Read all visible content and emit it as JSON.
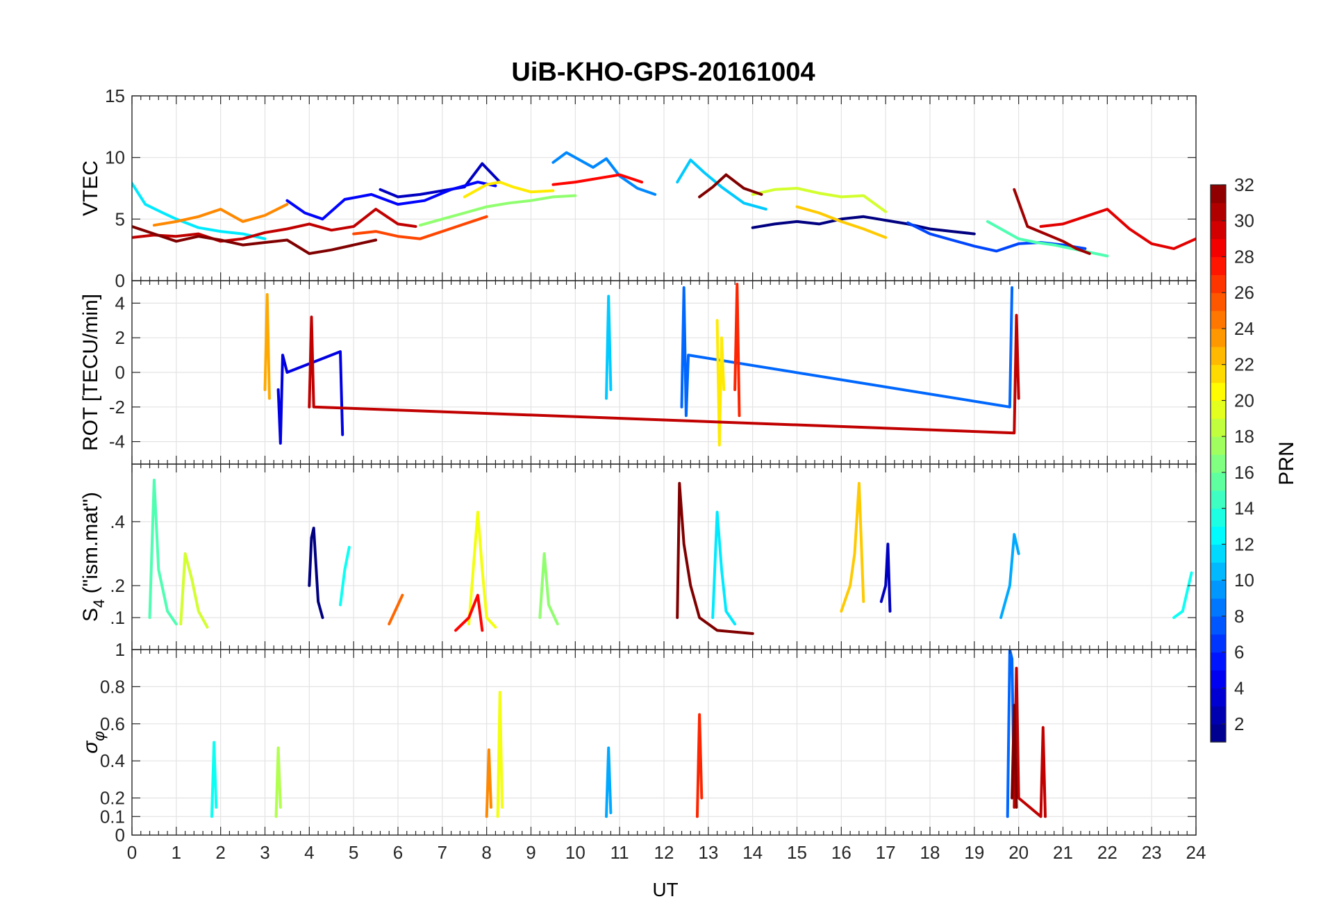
{
  "chart_data": {
    "type": "line",
    "title": "UiB-KHO-GPS-20161004",
    "xlabel": "UT",
    "xlim": [
      0,
      24
    ],
    "xticks": [
      0,
      1,
      2,
      3,
      4,
      5,
      6,
      7,
      8,
      9,
      10,
      11,
      12,
      13,
      14,
      15,
      16,
      17,
      18,
      19,
      20,
      21,
      22,
      23,
      24
    ],
    "grid": true,
    "colorbar": {
      "label": "PRN",
      "colormap": "jet",
      "range": [
        1,
        32
      ],
      "ticks": [
        2,
        4,
        6,
        8,
        10,
        12,
        14,
        16,
        18,
        20,
        22,
        24,
        26,
        28,
        30,
        32
      ]
    },
    "panels": [
      {
        "ylabel": "VTEC",
        "ylim": [
          0,
          15
        ],
        "yticks": [
          0,
          5,
          10,
          15
        ],
        "series": [
          {
            "prn": 1,
            "x": [
              14.0,
              14.5,
              15.0,
              15.5,
              16.0,
              16.5,
              17.0,
              17.5,
              18.0,
              18.5,
              19.0
            ],
            "y": [
              4.3,
              4.6,
              4.8,
              4.6,
              5.0,
              5.2,
              4.9,
              4.6,
              4.2,
              4.0,
              3.8
            ]
          },
          {
            "prn": 3,
            "x": [
              5.6,
              6.0,
              6.5,
              7.0,
              7.5,
              7.9,
              8.3
            ],
            "y": [
              7.4,
              6.8,
              7.0,
              7.3,
              7.6,
              9.5,
              8.0
            ]
          },
          {
            "prn": 5,
            "x": [
              3.5,
              3.9,
              4.3,
              4.8,
              5.4,
              6.0,
              6.6,
              7.2,
              7.8,
              8.2
            ],
            "y": [
              6.5,
              5.5,
              5.0,
              6.6,
              7.0,
              6.2,
              6.5,
              7.4,
              8.0,
              7.7
            ]
          },
          {
            "prn": 7,
            "x": [
              17.5,
              18.0,
              18.5,
              19.0,
              19.5,
              20.0,
              20.5,
              21.0,
              21.5
            ],
            "y": [
              4.7,
              3.8,
              3.3,
              2.8,
              2.4,
              3.0,
              3.1,
              2.9,
              2.6
            ]
          },
          {
            "prn": 9,
            "x": [
              9.5,
              9.8,
              10.1,
              10.4,
              10.7,
              11.0,
              11.4,
              11.8
            ],
            "y": [
              9.6,
              10.4,
              9.8,
              9.2,
              9.9,
              8.5,
              7.5,
              7.0
            ]
          },
          {
            "prn": 11,
            "x": [
              12.3,
              12.6,
              12.9,
              13.3,
              13.8,
              14.3
            ],
            "y": [
              8.0,
              9.8,
              8.8,
              7.6,
              6.3,
              5.8
            ]
          },
          {
            "prn": 12,
            "x": [
              0.0,
              0.3,
              0.7,
              1.0,
              1.5,
              2.0,
              2.5,
              3.0
            ],
            "y": [
              7.9,
              6.2,
              5.5,
              5.0,
              4.3,
              4.0,
              3.8,
              3.4
            ]
          },
          {
            "prn": 15,
            "x": [
              19.3,
              19.6,
              20.0,
              20.4,
              20.8,
              21.2,
              21.6,
              22.0
            ],
            "y": [
              4.8,
              4.2,
              3.4,
              3.1,
              2.9,
              2.6,
              2.3,
              2.0
            ]
          },
          {
            "prn": 17,
            "x": [
              6.5,
              7.0,
              7.5,
              8.0,
              8.5,
              9.0,
              9.5,
              10.0
            ],
            "y": [
              4.5,
              5.0,
              5.5,
              6.0,
              6.3,
              6.5,
              6.8,
              6.9
            ]
          },
          {
            "prn": 19,
            "x": [
              14.0,
              14.5,
              15.0,
              15.5,
              16.0,
              16.5,
              17.0
            ],
            "y": [
              7.0,
              7.4,
              7.5,
              7.1,
              6.8,
              6.9,
              5.6
            ]
          },
          {
            "prn": 21,
            "x": [
              7.5,
              8.0,
              8.3,
              8.6,
              9.0,
              9.5
            ],
            "y": [
              6.8,
              7.8,
              8.0,
              7.6,
              7.2,
              7.3
            ]
          },
          {
            "prn": 22,
            "x": [
              15.0,
              15.5,
              16.0,
              16.5,
              17.0
            ],
            "y": [
              6.0,
              5.5,
              4.8,
              4.2,
              3.5
            ]
          },
          {
            "prn": 24,
            "x": [
              0.5,
              1.0,
              1.5,
              2.0,
              2.5,
              3.0,
              3.5
            ],
            "y": [
              4.5,
              4.8,
              5.2,
              5.8,
              4.8,
              5.3,
              6.2
            ]
          },
          {
            "prn": 26,
            "x": [
              5.0,
              5.5,
              6.0,
              6.5,
              7.0,
              7.5,
              8.0
            ],
            "y": [
              3.8,
              4.0,
              3.6,
              3.4,
              4.0,
              4.6,
              5.2
            ]
          },
          {
            "prn": 28,
            "x": [
              9.5,
              10.0,
              10.5,
              11.0,
              11.5
            ],
            "y": [
              7.8,
              8.0,
              8.3,
              8.6,
              8.0
            ]
          },
          {
            "prn": 29,
            "x": [
              20.5,
              21.0,
              21.5,
              22.0,
              22.5,
              23.0,
              23.5,
              24.0
            ],
            "y": [
              4.4,
              4.6,
              5.2,
              5.8,
              4.2,
              3.0,
              2.6,
              3.4
            ]
          },
          {
            "prn": 30,
            "x": [
              0.0,
              0.5,
              1.0,
              1.5,
              2.0,
              2.5,
              3.0,
              3.5,
              4.0,
              4.5,
              5.0,
              5.5,
              6.0,
              6.4
            ],
            "y": [
              3.5,
              3.7,
              3.6,
              3.8,
              3.2,
              3.4,
              3.9,
              4.2,
              4.6,
              4.1,
              4.4,
              5.8,
              4.6,
              4.4
            ]
          },
          {
            "prn": 31,
            "x": [
              19.9,
              20.2,
              20.6,
              21.0,
              21.3,
              21.6
            ],
            "y": [
              7.4,
              4.4,
              3.8,
              3.2,
              2.6,
              2.2
            ]
          },
          {
            "prn": 32,
            "x": [
              0.0,
              0.5,
              1.0,
              1.5,
              2.0,
              2.5,
              3.0,
              3.5,
              4.0,
              4.5,
              5.0,
              5.5
            ],
            "y": [
              4.4,
              3.8,
              3.2,
              3.6,
              3.3,
              2.9,
              3.1,
              3.3,
              2.2,
              2.5,
              2.9,
              3.3
            ]
          },
          {
            "prn": 32,
            "x": [
              12.8,
              13.1,
              13.4,
              13.8,
              14.2
            ],
            "y": [
              6.8,
              7.6,
              8.6,
              7.5,
              7.0
            ]
          }
        ]
      },
      {
        "ylabel": "ROT [TECU/min]",
        "ylim": [
          -5.3,
          5.3
        ],
        "yticks": [
          -4,
          -2,
          0,
          2,
          4
        ],
        "series": [
          {
            "prn": 4,
            "x": [
              3.3,
              3.35,
              3.4,
              3.5,
              4.7,
              4.75
            ],
            "y": [
              -1.0,
              -4.1,
              1.0,
              0.0,
              1.2,
              -3.6
            ]
          },
          {
            "prn": 8,
            "x": [
              12.4,
              12.45,
              12.5,
              12.55,
              19.8,
              19.85
            ],
            "y": [
              -2.0,
              4.9,
              -2.5,
              1.0,
              -2.0,
              4.9
            ]
          },
          {
            "prn": 11,
            "x": [
              10.7,
              10.75,
              10.8
            ],
            "y": [
              -1.5,
              4.4,
              -1.0
            ]
          },
          {
            "prn": 21,
            "x": [
              13.2,
              13.25,
              13.3,
              13.35
            ],
            "y": [
              3.0,
              -4.2,
              2.0,
              -1.0
            ]
          },
          {
            "prn": 23,
            "x": [
              3.0,
              3.05,
              3.1
            ],
            "y": [
              -1.0,
              4.5,
              -1.5
            ]
          },
          {
            "prn": 27,
            "x": [
              13.6,
              13.65,
              13.7
            ],
            "y": [
              -1.0,
              5.1,
              -2.5
            ]
          },
          {
            "prn": 30,
            "x": [
              4.0,
              4.05,
              4.1,
              19.9,
              19.95,
              20.0
            ],
            "y": [
              -2.0,
              3.2,
              -2.0,
              -3.5,
              3.3,
              -1.5
            ]
          }
        ]
      },
      {
        "ylabel": "S_4 (\"ism.mat\")",
        "ylim": [
          0,
          0.58
        ],
        "yticks": [
          0.1,
          0.2,
          0.4
        ],
        "series": [
          {
            "prn": 1,
            "x": [
              4.0,
              4.05,
              4.1,
              4.2,
              4.3
            ],
            "y": [
              0.2,
              0.35,
              0.38,
              0.15,
              0.1
            ]
          },
          {
            "prn": 3,
            "x": [
              16.9,
              17.0,
              17.05,
              17.1
            ],
            "y": [
              0.15,
              0.2,
              0.33,
              0.12
            ]
          },
          {
            "prn": 10,
            "x": [
              19.6,
              19.8,
              19.9,
              20.0
            ],
            "y": [
              0.1,
              0.2,
              0.36,
              0.3
            ]
          },
          {
            "prn": 12,
            "x": [
              13.1,
              13.2,
              13.3,
              13.4,
              13.6
            ],
            "y": [
              0.1,
              0.43,
              0.25,
              0.12,
              0.08
            ]
          },
          {
            "prn": 13,
            "x": [
              4.7,
              4.8,
              4.9
            ],
            "y": [
              0.14,
              0.25,
              0.32
            ]
          },
          {
            "prn": 13,
            "x": [
              23.5,
              23.7,
              23.8,
              23.9
            ],
            "y": [
              0.1,
              0.12,
              0.18,
              0.24
            ]
          },
          {
            "prn": 15,
            "x": [
              0.4,
              0.5,
              0.6,
              0.8,
              1.0
            ],
            "y": [
              0.1,
              0.53,
              0.25,
              0.12,
              0.08
            ]
          },
          {
            "prn": 17,
            "x": [
              9.2,
              9.3,
              9.4,
              9.6
            ],
            "y": [
              0.1,
              0.3,
              0.14,
              0.08
            ]
          },
          {
            "prn": 19,
            "x": [
              1.1,
              1.2,
              1.35,
              1.5,
              1.7
            ],
            "y": [
              0.08,
              0.3,
              0.22,
              0.12,
              0.07
            ]
          },
          {
            "prn": 20,
            "x": [
              7.6,
              7.8,
              7.9,
              8.0,
              8.2
            ],
            "y": [
              0.08,
              0.43,
              0.25,
              0.1,
              0.07
            ]
          },
          {
            "prn": 22,
            "x": [
              16.0,
              16.2,
              16.3,
              16.4,
              16.5
            ],
            "y": [
              0.12,
              0.2,
              0.3,
              0.52,
              0.15
            ]
          },
          {
            "prn": 25,
            "x": [
              5.8,
              6.0,
              6.1
            ],
            "y": [
              0.08,
              0.14,
              0.17
            ]
          },
          {
            "prn": 28,
            "x": [
              7.3,
              7.6,
              7.8,
              7.9
            ],
            "y": [
              0.06,
              0.1,
              0.17,
              0.06
            ]
          },
          {
            "prn": 32,
            "x": [
              12.3,
              12.35,
              12.45,
              12.6,
              12.8,
              13.2,
              14.0
            ],
            "y": [
              0.1,
              0.52,
              0.33,
              0.2,
              0.1,
              0.06,
              0.05
            ]
          }
        ]
      },
      {
        "ylabel": "σ_φ",
        "ylim": [
          0,
          1
        ],
        "yticks": [
          0,
          0.1,
          0.2,
          0.4,
          0.6,
          0.8,
          1
        ],
        "series": [
          {
            "prn": 8,
            "x": [
              19.75,
              19.8,
              19.85,
              19.9
            ],
            "y": [
              0.1,
              1.0,
              0.95,
              0.2
            ]
          },
          {
            "prn": 10,
            "x": [
              10.7,
              10.75,
              10.8
            ],
            "y": [
              0.1,
              0.47,
              0.12
            ]
          },
          {
            "prn": 13,
            "x": [
              1.8,
              1.85,
              1.9
            ],
            "y": [
              0.1,
              0.5,
              0.15
            ]
          },
          {
            "prn": 18,
            "x": [
              3.25,
              3.3,
              3.35
            ],
            "y": [
              0.1,
              0.47,
              0.15
            ]
          },
          {
            "prn": 20,
            "x": [
              8.25,
              8.3,
              8.35
            ],
            "y": [
              0.1,
              0.77,
              0.15
            ]
          },
          {
            "prn": 24,
            "x": [
              8.0,
              8.05,
              8.1
            ],
            "y": [
              0.1,
              0.46,
              0.15
            ]
          },
          {
            "prn": 27,
            "x": [
              12.75,
              12.8,
              12.85
            ],
            "y": [
              0.1,
              0.65,
              0.2
            ]
          },
          {
            "prn": 30,
            "x": [
              19.9,
              19.95,
              20.0,
              20.5,
              20.55,
              20.6
            ],
            "y": [
              0.15,
              0.9,
              0.2,
              0.1,
              0.58,
              0.1
            ]
          },
          {
            "prn": 32,
            "x": [
              19.85,
              19.9,
              19.95
            ],
            "y": [
              0.2,
              0.7,
              0.15
            ]
          }
        ]
      }
    ]
  }
}
